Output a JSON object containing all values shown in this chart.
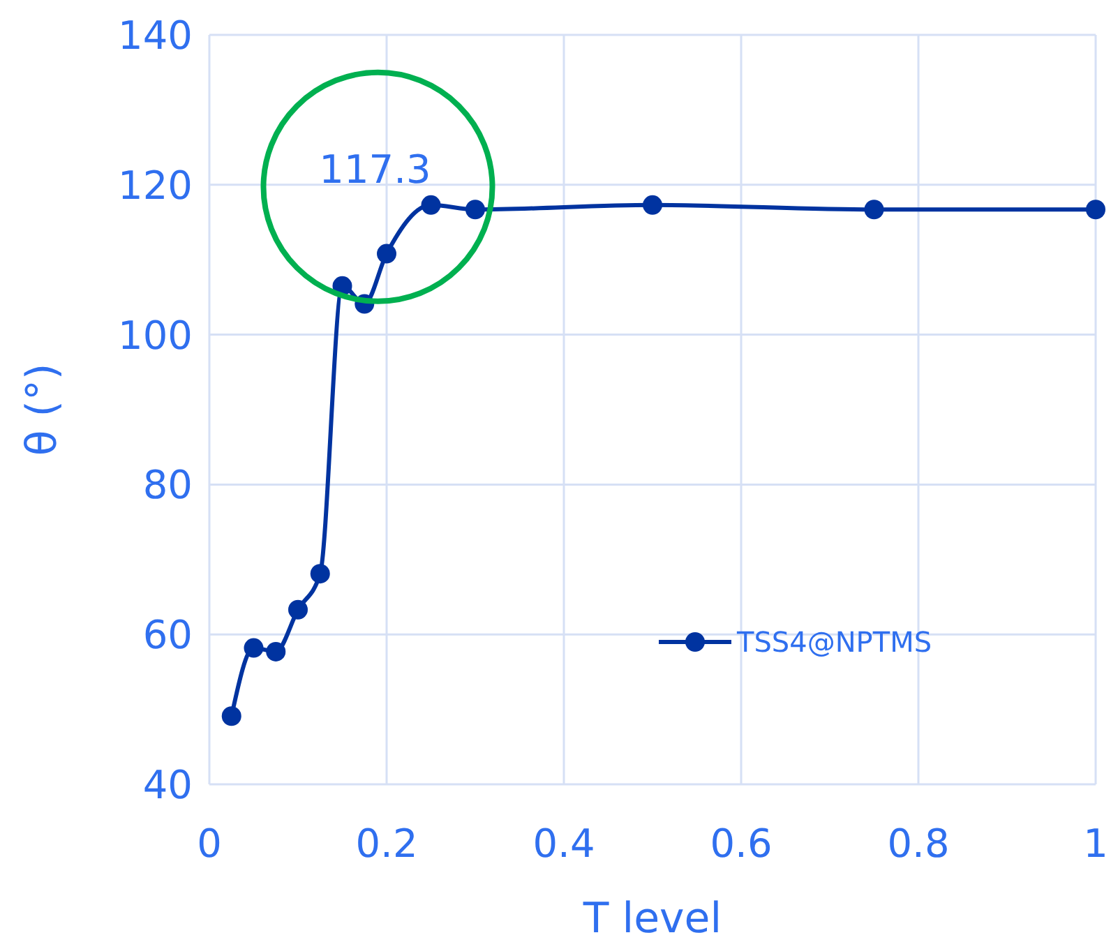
{
  "chart_data": {
    "type": "line",
    "xlabel": "T level",
    "ylabel": "θ (°)",
    "x": [
      0.025,
      0.05,
      0.075,
      0.1,
      0.125,
      0.15,
      0.175,
      0.2,
      0.25,
      0.3,
      0.5,
      0.75,
      1
    ],
    "series": [
      {
        "name": "TSS4@NPTMS",
        "color": "#0033a0",
        "values": [
          49.1,
          58.2,
          57.7,
          63.3,
          68.1,
          106.5,
          104.1,
          110.8,
          117.3,
          116.7,
          117.3,
          116.7,
          116.7
        ]
      }
    ],
    "xlim": [
      0,
      1
    ],
    "xticks": [
      0,
      0.2,
      0.4,
      0.6,
      0.8,
      1
    ],
    "ylim": [
      40,
      140
    ],
    "yticks": [
      40,
      60,
      80,
      100,
      120,
      140
    ],
    "grid": true,
    "legend": "right",
    "marker": "circle",
    "line_style": "solid",
    "annotations": [
      {
        "text": "117.3",
        "x": 0.25,
        "y": 117.3
      }
    ]
  }
}
